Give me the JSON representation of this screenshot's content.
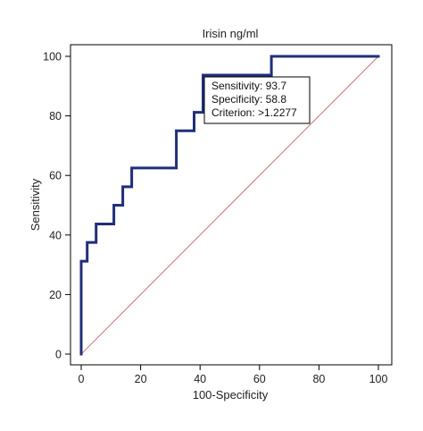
{
  "chart_data": {
    "type": "line",
    "title": "Irisin ng/ml",
    "xlabel": "100-Specificity",
    "ylabel": "Sensitivity",
    "xlim": [
      0,
      100
    ],
    "ylim": [
      0,
      100
    ],
    "xticks": [
      0,
      20,
      40,
      60,
      80,
      100
    ],
    "yticks": [
      0,
      20,
      40,
      60,
      80,
      100
    ],
    "grid": false,
    "colors": {
      "roc": "#1f2f7a",
      "diagonal": "#c87878",
      "frame": "#000000"
    },
    "series": [
      {
        "values_x": [
          0,
          0,
          2,
          2,
          5,
          5,
          11,
          11,
          14,
          14,
          17,
          17,
          32,
          32,
          38,
          38,
          41,
          41,
          64,
          64,
          100
        ],
        "values_y": [
          0,
          31.2,
          31.2,
          37.5,
          37.5,
          43.7,
          43.7,
          50,
          50,
          56.2,
          56.2,
          62.5,
          62.5,
          75,
          75,
          81.2,
          81.2,
          93.7,
          93.7,
          100,
          100
        ]
      },
      {
        "values_x": [
          0,
          100
        ],
        "values_y": [
          0,
          100
        ]
      }
    ],
    "annotation": {
      "lines": [
        "Sensitivity: 93.7",
        "Specificity: 58.8",
        "Criterion: >1.2277"
      ]
    }
  }
}
